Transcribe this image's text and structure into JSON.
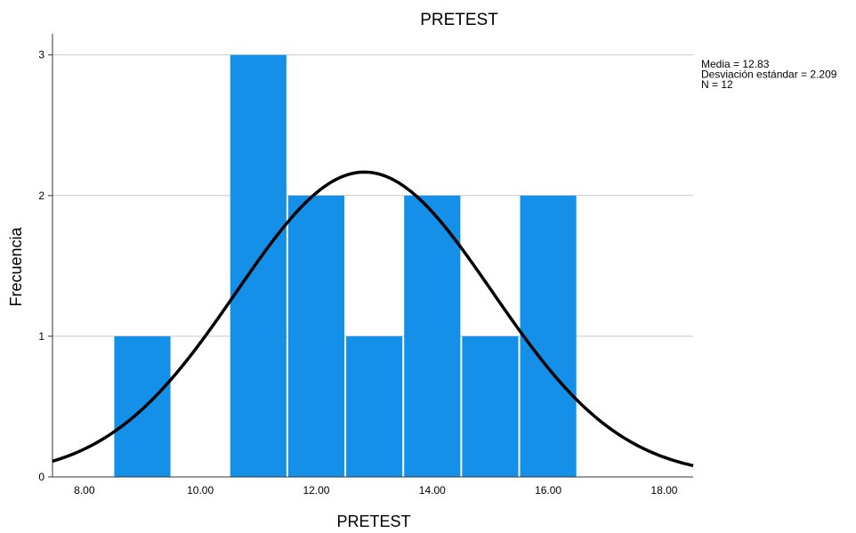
{
  "chart_data": {
    "type": "bar",
    "title": "PRETEST",
    "xlabel": "PRETEST",
    "ylabel": "Frecuencia",
    "bins": [
      {
        "start": 8.5,
        "end": 9.5,
        "count": 1
      },
      {
        "start": 9.5,
        "end": 10.5,
        "count": 0
      },
      {
        "start": 10.5,
        "end": 11.5,
        "count": 3
      },
      {
        "start": 11.5,
        "end": 12.5,
        "count": 2
      },
      {
        "start": 12.5,
        "end": 13.5,
        "count": 1
      },
      {
        "start": 13.5,
        "end": 14.5,
        "count": 2
      },
      {
        "start": 14.5,
        "end": 15.5,
        "count": 1
      },
      {
        "start": 15.5,
        "end": 16.5,
        "count": 2
      }
    ],
    "xlim": [
      7.45,
      18.5
    ],
    "ylim": [
      0,
      3.15
    ],
    "x_ticks": [
      8,
      10,
      12,
      14,
      16,
      18
    ],
    "x_tick_labels": [
      "8.00",
      "10.00",
      "12.00",
      "14.00",
      "16.00",
      "18.00"
    ],
    "y_ticks": [
      0,
      1,
      2,
      3
    ],
    "y_tick_labels": [
      "0",
      "1",
      "2",
      "3"
    ],
    "grid": true,
    "normal_curve": {
      "mean": 12.83,
      "std": 2.209,
      "n": 12,
      "bin_width": 1
    },
    "stats_text": [
      "Media = 12.83",
      "Desviación estándar = 2.209",
      "N = 12"
    ],
    "bar_color": "#1490E8",
    "curve_color": "#000000"
  }
}
